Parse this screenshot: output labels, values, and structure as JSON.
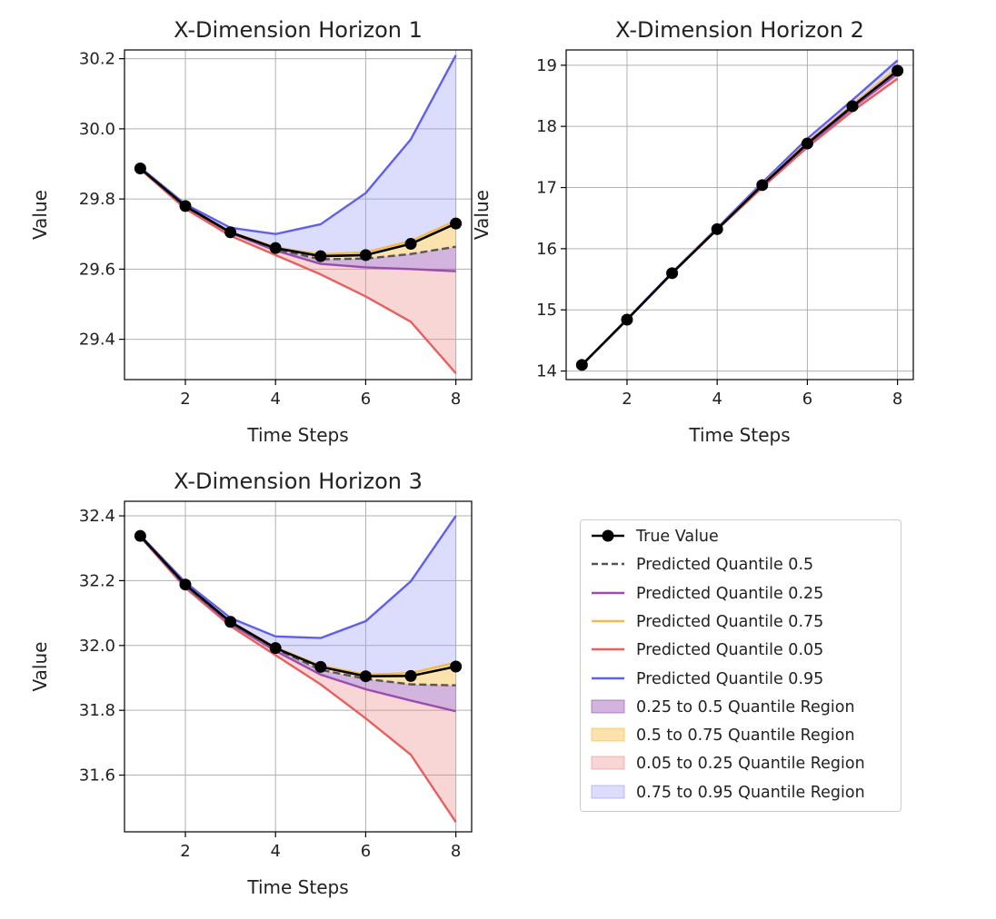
{
  "chart_data": [
    {
      "type": "line",
      "title": "X-Dimension Horizon 1",
      "xlabel": "Time Steps",
      "ylabel": "Value",
      "x": [
        1,
        2,
        3,
        4,
        5,
        6,
        7,
        8
      ],
      "xticks": [
        2,
        4,
        6,
        8
      ],
      "yticks": [
        29.4,
        29.6,
        29.8,
        30.0,
        30.2
      ],
      "ytick_labels": [
        "29.4",
        "29.6",
        "29.8",
        "30.0",
        "30.2"
      ],
      "xlim": [
        0.65,
        8.35
      ],
      "ylim": [
        29.285,
        30.225
      ],
      "grid": true,
      "series": [
        {
          "name": "True Value",
          "values": [
            29.887,
            29.78,
            29.705,
            29.66,
            29.637,
            29.64,
            29.672,
            29.73
          ]
        },
        {
          "name": "Predicted Quantile 0.5",
          "values": [
            29.887,
            29.778,
            29.705,
            29.657,
            29.628,
            29.63,
            29.643,
            29.664
          ]
        },
        {
          "name": "Predicted Quantile 0.25",
          "values": [
            29.887,
            29.778,
            29.703,
            29.653,
            29.615,
            29.605,
            29.6,
            29.594
          ]
        },
        {
          "name": "Predicted Quantile 0.75",
          "values": [
            29.887,
            29.78,
            29.706,
            29.662,
            29.642,
            29.648,
            29.68,
            29.738
          ]
        },
        {
          "name": "Predicted Quantile 0.05",
          "values": [
            29.885,
            29.772,
            29.695,
            29.64,
            29.585,
            29.522,
            29.45,
            29.303
          ]
        },
        {
          "name": "Predicted Quantile 0.95",
          "values": [
            29.89,
            29.785,
            29.718,
            29.7,
            29.728,
            29.817,
            29.97,
            30.21
          ]
        }
      ]
    },
    {
      "type": "line",
      "title": "X-Dimension Horizon 2",
      "xlabel": "Time Steps",
      "ylabel": "Value",
      "x": [
        1,
        2,
        3,
        4,
        5,
        6,
        7,
        8
      ],
      "xticks": [
        2,
        4,
        6,
        8
      ],
      "yticks": [
        14,
        15,
        16,
        17,
        18,
        19
      ],
      "ytick_labels": [
        "14",
        "15",
        "16",
        "17",
        "18",
        "19"
      ],
      "xlim": [
        0.65,
        8.35
      ],
      "ylim": [
        13.86,
        19.25
      ],
      "grid": true,
      "series": [
        {
          "name": "True Value",
          "values": [
            14.1,
            14.84,
            15.6,
            16.32,
            17.04,
            17.72,
            18.33,
            18.91
          ]
        },
        {
          "name": "Predicted Quantile 0.5",
          "values": [
            14.1,
            14.84,
            15.6,
            16.32,
            17.04,
            17.72,
            18.33,
            18.91
          ]
        },
        {
          "name": "Predicted Quantile 0.25",
          "values": [
            14.1,
            14.84,
            15.6,
            16.32,
            17.03,
            17.7,
            18.3,
            18.86
          ]
        },
        {
          "name": "Predicted Quantile 0.75",
          "values": [
            14.1,
            14.84,
            15.6,
            16.33,
            17.05,
            17.74,
            18.36,
            18.96
          ]
        },
        {
          "name": "Predicted Quantile 0.05",
          "values": [
            14.1,
            14.84,
            15.6,
            16.31,
            17.0,
            17.66,
            18.25,
            18.78
          ]
        },
        {
          "name": "Predicted Quantile 0.95",
          "values": [
            14.1,
            14.85,
            15.61,
            16.34,
            17.08,
            17.8,
            18.43,
            19.08
          ]
        }
      ]
    },
    {
      "type": "line",
      "title": "X-Dimension Horizon 3",
      "xlabel": "Time Steps",
      "ylabel": "Value",
      "x": [
        1,
        2,
        3,
        4,
        5,
        6,
        7,
        8
      ],
      "xticks": [
        2,
        4,
        6,
        8
      ],
      "yticks": [
        31.6,
        31.8,
        32.0,
        32.2,
        32.4
      ],
      "ytick_labels": [
        "31.6",
        "31.8",
        "32.0",
        "32.2",
        "32.4"
      ],
      "xlim": [
        0.65,
        8.35
      ],
      "ylim": [
        31.425,
        32.445
      ],
      "grid": true,
      "series": [
        {
          "name": "True Value",
          "values": [
            32.338,
            32.188,
            32.073,
            31.992,
            31.934,
            31.905,
            31.906,
            31.935
          ]
        },
        {
          "name": "Predicted Quantile 0.5",
          "values": [
            32.338,
            32.185,
            32.07,
            31.99,
            31.925,
            31.897,
            31.88,
            31.877
          ]
        },
        {
          "name": "Predicted Quantile 0.25",
          "values": [
            32.337,
            32.183,
            32.067,
            31.983,
            31.91,
            31.865,
            31.83,
            31.797
          ]
        },
        {
          "name": "Predicted Quantile 0.75",
          "values": [
            32.338,
            32.188,
            32.074,
            31.994,
            31.938,
            31.91,
            31.915,
            31.947
          ]
        },
        {
          "name": "Predicted Quantile 0.05",
          "values": [
            32.335,
            32.178,
            32.06,
            31.97,
            31.88,
            31.775,
            31.663,
            31.455
          ]
        },
        {
          "name": "Predicted Quantile 0.95",
          "values": [
            32.34,
            32.195,
            32.085,
            32.028,
            32.023,
            32.075,
            32.198,
            32.4
          ]
        }
      ]
    }
  ],
  "colors": {
    "true_value": "#000000",
    "q50": "#555555",
    "q25": "#9b4dab",
    "q75": "#f5b94a",
    "q05": "#e75f5f",
    "q95": "#5f5fec",
    "region_25_50": "#8e44ad",
    "region_50_75": "#f7b733",
    "region_05_25": "#ef8a8a",
    "region_75_95": "#9a9af5"
  },
  "legend": {
    "position": "lower-right",
    "items": [
      {
        "label": "True Value",
        "kind": "marker-line",
        "color": "#000000"
      },
      {
        "label": "Predicted Quantile 0.5",
        "kind": "dashed-line",
        "color": "#555555"
      },
      {
        "label": "Predicted Quantile 0.25",
        "kind": "line",
        "color": "#9b4dab"
      },
      {
        "label": "Predicted Quantile 0.75",
        "kind": "line",
        "color": "#f5b94a"
      },
      {
        "label": "Predicted Quantile 0.05",
        "kind": "line",
        "color": "#e75f5f"
      },
      {
        "label": "Predicted Quantile 0.95",
        "kind": "line",
        "color": "#5f5fec"
      },
      {
        "label": "0.25 to 0.5 Quantile Region",
        "kind": "patch",
        "color": "#8e44ad",
        "opacity": 0.4
      },
      {
        "label": "0.5 to 0.75 Quantile Region",
        "kind": "patch",
        "color": "#f7b733",
        "opacity": 0.4
      },
      {
        "label": "0.05 to 0.25 Quantile Region",
        "kind": "patch",
        "color": "#ef8a8a",
        "opacity": 0.35
      },
      {
        "label": "0.75 to 0.95 Quantile Region",
        "kind": "patch",
        "color": "#9a9af5",
        "opacity": 0.35
      }
    ]
  }
}
